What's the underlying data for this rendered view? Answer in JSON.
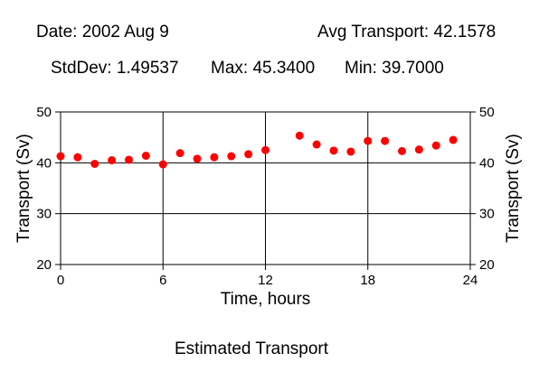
{
  "stats": {
    "date": "Date: 2002 Aug 9",
    "avg": "Avg Transport: 42.1578",
    "stddev": "StdDev: 1.49537",
    "max": "Max: 45.3400",
    "min": "Min: 39.7000"
  },
  "chart_data": {
    "type": "scatter",
    "title": "",
    "caption": "Estimated Transport",
    "xlabel": "Time, hours",
    "ylabel": "Transport (Sv)",
    "y2label": "Transport (Sv)",
    "xlim": [
      0,
      24
    ],
    "ylim": [
      20,
      50
    ],
    "xticks": [
      0,
      6,
      12,
      18,
      24
    ],
    "yticks": [
      20,
      30,
      40,
      50
    ],
    "grid": true,
    "marker_color": "#ff0000",
    "x": [
      0,
      1,
      2,
      3,
      4,
      5,
      6,
      7,
      8,
      9,
      10,
      11,
      12,
      14,
      15,
      16,
      17,
      18,
      19,
      20,
      21,
      22,
      23
    ],
    "y": [
      41.3,
      41.1,
      39.8,
      40.5,
      40.6,
      41.4,
      39.7,
      41.9,
      40.8,
      41.1,
      41.3,
      41.7,
      42.5,
      45.34,
      43.6,
      42.4,
      42.2,
      44.3,
      44.3,
      42.3,
      42.6,
      43.4,
      44.5
    ]
  }
}
